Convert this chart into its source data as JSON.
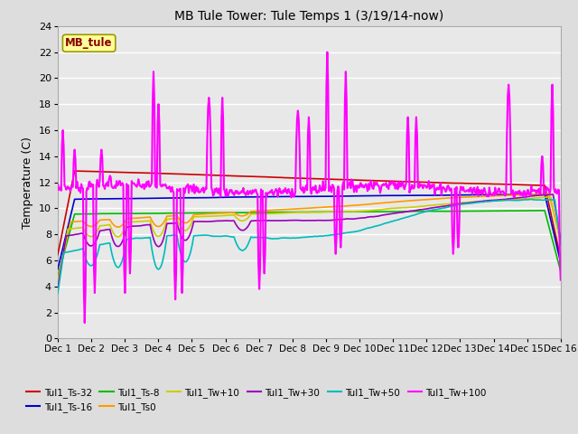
{
  "title": "MB Tule Tower: Tule Temps 1 (3/19/14-now)",
  "ylabel": "Temperature (C)",
  "xlim": [
    0,
    15
  ],
  "ylim": [
    0,
    24
  ],
  "yticks": [
    0,
    2,
    4,
    6,
    8,
    10,
    12,
    14,
    16,
    18,
    20,
    22,
    24
  ],
  "xtick_labels": [
    "Dec 1",
    "Dec 2",
    "Dec 3",
    "Dec 4",
    "Dec 5",
    "Dec 6",
    "Dec 7",
    "Dec 8",
    "Dec 9",
    "Dec 10",
    "Dec 11",
    "Dec 12",
    "Dec 13",
    "Dec 14",
    "Dec 15",
    "Dec 16"
  ],
  "background_color": "#dddddd",
  "plot_bg_color": "#e8e8e8",
  "grid_color": "#ffffff",
  "series": {
    "Tul1_Ts-32": {
      "color": "#cc0000",
      "lw": 1.2
    },
    "Tul1_Ts-16": {
      "color": "#0000cc",
      "lw": 1.2
    },
    "Tul1_Ts-8": {
      "color": "#00bb00",
      "lw": 1.2
    },
    "Tul1_Ts0": {
      "color": "#ff9900",
      "lw": 1.2
    },
    "Tul1_Tw+10": {
      "color": "#cccc00",
      "lw": 1.2
    },
    "Tul1_Tw+30": {
      "color": "#9900bb",
      "lw": 1.2
    },
    "Tul1_Tw+50": {
      "color": "#00bbbb",
      "lw": 1.2
    },
    "Tul1_Tw+100": {
      "color": "#ff00ff",
      "lw": 1.5
    }
  },
  "inset_label": "MB_tule",
  "inset_color": "#880000",
  "inset_bg": "#ffff99",
  "inset_border": "#999900",
  "legend_labels_row1": [
    "Tul1_Ts-32",
    "Tul1_Ts-16",
    "Tul1_Ts-8",
    "Tul1_Ts0",
    "Tul1_Tw+10",
    "Tul1_Tw+30"
  ],
  "legend_labels_row2": [
    "Tul1_Tw+50",
    "Tul1_Tw+100"
  ]
}
